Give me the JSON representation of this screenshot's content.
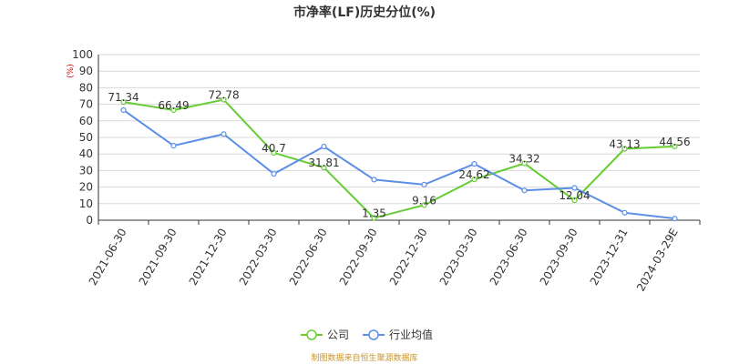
{
  "chart_data": {
    "type": "line",
    "title": "市净率(LF)历史分位(%)",
    "ylabel": "(%)",
    "ylim": [
      0,
      100
    ],
    "yticks": [
      0,
      10,
      20,
      30,
      40,
      50,
      60,
      70,
      80,
      90,
      100
    ],
    "categories": [
      "2021-06-30",
      "2021-09-30",
      "2021-12-30",
      "2022-03-30",
      "2022-06-30",
      "2022-09-30",
      "2022-12-30",
      "2023-03-30",
      "2023-06-30",
      "2023-09-30",
      "2023-12-31",
      "2024-03-29E"
    ],
    "series": [
      {
        "name": "公司",
        "color": "#66cc33",
        "values": [
          71.34,
          66.49,
          72.78,
          40.7,
          31.81,
          1.35,
          9.16,
          24.62,
          34.32,
          12.04,
          43.13,
          44.56
        ],
        "labels": [
          "71.34",
          "66.49",
          "72.78",
          "40.7",
          "31.81",
          "1.35",
          "9.16",
          "24.62",
          "34.32",
          "12.04",
          "43.13",
          "44.56"
        ]
      },
      {
        "name": "行业均值",
        "color": "#5b8ee6",
        "values": [
          66.5,
          45.0,
          52.0,
          28.0,
          44.5,
          24.5,
          21.5,
          34.0,
          18.0,
          19.5,
          4.5,
          1.0
        ]
      }
    ],
    "grid": true,
    "legend_position": "bottom"
  },
  "source_note": "制图数据来自恒生聚源数据库"
}
